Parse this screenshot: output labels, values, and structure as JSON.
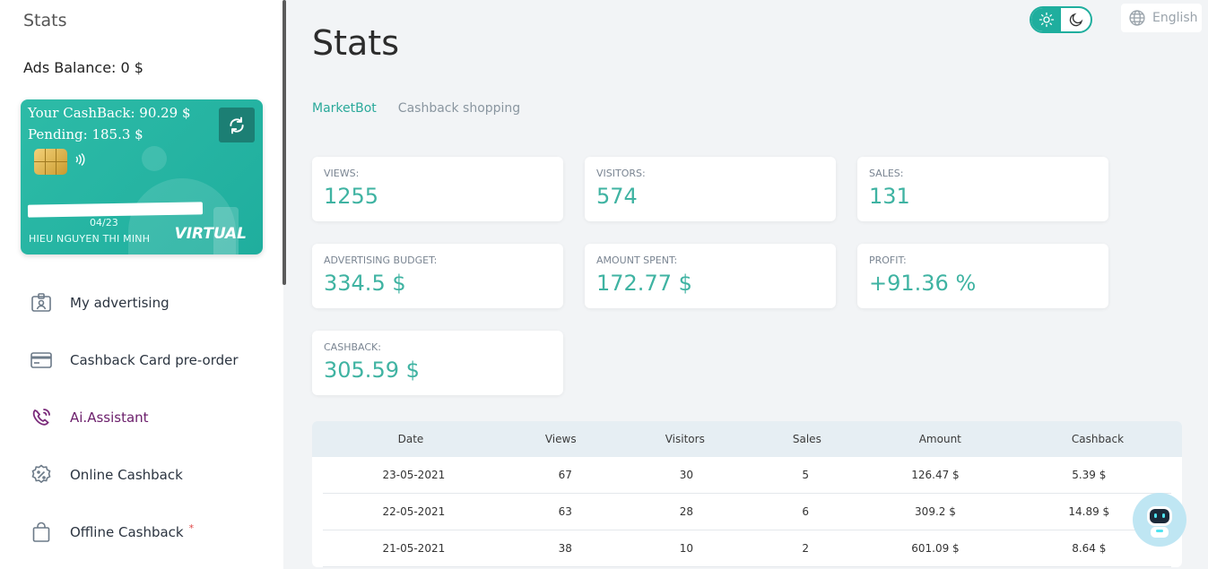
{
  "sidebar": {
    "title": "Stats",
    "ads_balance": "Ads Balance: 0 $",
    "card": {
      "cashback": "Your CashBack: 90.29 $",
      "pending": "Pending: 185.3 $",
      "expiry": "04/23",
      "holder": "HIEU NGUYEN THI MINH",
      "type": "VIRTUAL"
    },
    "menu": [
      {
        "label": "My advertising",
        "icon": "id-card-icon"
      },
      {
        "label": "Cashback Card pre-order",
        "icon": "credit-card-icon"
      },
      {
        "label": "Ai.Assistant",
        "icon": "phone-ringing-icon"
      },
      {
        "label": "Online Cashback",
        "icon": "percent-badge-icon"
      },
      {
        "label": "Offline Cashback",
        "icon": "shopping-bag-icon",
        "badge": "*"
      }
    ]
  },
  "header": {
    "page_title": "Stats",
    "language": "English"
  },
  "tabs": [
    "MarketBot",
    "Cashback shopping"
  ],
  "stats": [
    {
      "label": "VIEWS:",
      "value": "1255"
    },
    {
      "label": "VISITORS:",
      "value": "574"
    },
    {
      "label": "SALES:",
      "value": "131"
    },
    {
      "label": "ADVERTISING BUDGET:",
      "value": "334.5 $"
    },
    {
      "label": "AMOUNT SPENT:",
      "value": "172.77 $"
    },
    {
      "label": "PROFIT:",
      "value": "+91.36 %"
    },
    {
      "label": "CASHBACK:",
      "value": "305.59 $"
    }
  ],
  "table": {
    "headers": [
      "Date",
      "Views",
      "Visitors",
      "Sales",
      "Amount",
      "Cashback"
    ],
    "rows": [
      [
        "23-05-2021",
        "67",
        "30",
        "5",
        "126.47 $",
        "5.39 $"
      ],
      [
        "22-05-2021",
        "63",
        "28",
        "6",
        "309.2 $",
        "14.89 $"
      ],
      [
        "21-05-2021",
        "38",
        "10",
        "2",
        "601.09 $",
        "8.64 $"
      ]
    ]
  },
  "colors": {
    "accent": "#1fae9e",
    "value_text": "#3fb3a2",
    "ai_label": "#6b1e6b"
  }
}
